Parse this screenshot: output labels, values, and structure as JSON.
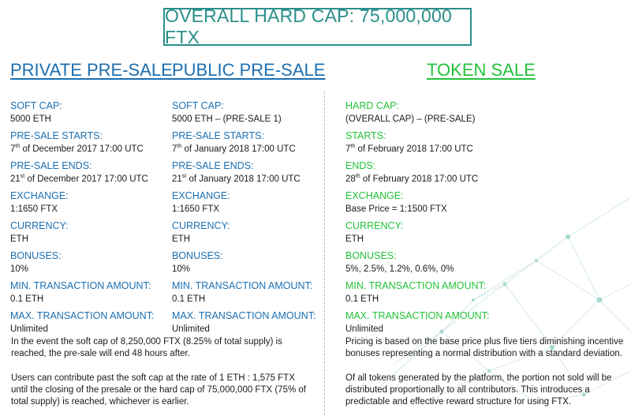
{
  "header": {
    "hard_cap": "OVERALL HARD CAP: 75,000,000 FTX"
  },
  "private_presale": {
    "title": "PRIVATE PRE-SALE",
    "soft_cap_label": "SOFT CAP:",
    "soft_cap_value": "5000 ETH",
    "starts_label": "PRE-SALE STARTS:",
    "starts_day": "7",
    "starts_suffix": "th",
    "starts_rest": " of December 2017 17:00 UTC",
    "ends_label": "PRE-SALE ENDS:",
    "ends_day": "21",
    "ends_suffix": "st",
    "ends_rest": " of December 2017 17:00 UTC",
    "exchange_label": "EXCHANGE:",
    "exchange_value": "1:1650 FTX",
    "currency_label": "CURRENCY:",
    "currency_value": "ETH",
    "bonuses_label": "BONUSES:",
    "bonuses_value": "10%",
    "min_label": "MIN. TRANSACTION AMOUNT:",
    "min_value": "0.1 ETH",
    "max_label": "MAX. TRANSACTION AMOUNT:",
    "max_value": "Unlimited"
  },
  "public_presale": {
    "title": "PUBLIC PRE-SALE",
    "soft_cap_label": "SOFT CAP:",
    "soft_cap_value": "5000 ETH – (PRE-SALE 1)",
    "starts_label": "PRE-SALE STARTS:",
    "starts_day": "7",
    "starts_suffix": "th",
    "starts_rest": " of January 2018 17:00 UTC",
    "ends_label": "PRE-SALE ENDS:",
    "ends_day": "21",
    "ends_suffix": "st",
    "ends_rest": " of January 2018 17:00 UTC",
    "exchange_label": "EXCHANGE:",
    "exchange_value": "1:1650 FTX",
    "currency_label": "CURRENCY:",
    "currency_value": "ETH",
    "bonuses_label": "BONUSES:",
    "bonuses_value": "10%",
    "min_label": "MIN. TRANSACTION AMOUNT:",
    "min_value": "0.1 ETH",
    "max_label": "MAX. TRANSACTION AMOUNT:",
    "max_value": "Unlimited"
  },
  "token_sale": {
    "title": "TOKEN SALE",
    "hard_cap_label": "HARD CAP:",
    "hard_cap_value": "(OVERALL CAP) – (PRE-SALE)",
    "starts_label": "STARTS:",
    "starts_day": "7",
    "starts_suffix": "th",
    "starts_rest": " of February 2018 17:00 UTC",
    "ends_label": "ENDS:",
    "ends_day": "28",
    "ends_suffix": "th",
    "ends_rest": " of February 2018 17:00 UTC",
    "exchange_label": "EXCHANGE:",
    "exchange_value": "Base Price = 1:1500 FTX",
    "currency_label": "CURRENCY:",
    "currency_value": "ETH",
    "bonuses_label": "BONUSES:",
    "bonuses_value": "5%, 2.5%, 1.2%, 0.6%, 0%",
    "min_label": "MIN. TRANSACTION AMOUNT:",
    "min_value": "0.1 ETH",
    "max_label": "MAX. TRANSACTION AMOUNT:",
    "max_value": "Unlimited"
  },
  "notes": {
    "soft_cap_note": "In the event the soft cap of 8,250,000 FTX (8.25% of total supply) is reached, the pre-sale will end 48 hours after.",
    "contribution_note": "Users can contribute past the soft cap at the rate of 1 ETH : 1,575 FTX until the closing of the presale or the hard cap of 75,000,000 FTX (75% of total supply) is reached, whichever is earlier.",
    "pricing_note": "Pricing is based on the base price plus five tiers diminishing incentive bonuses representing a normal distribution with a standard deviation.",
    "distribution_note": "Of all tokens generated by the platform, the portion not sold will be distributed proportionally to all contributors. This introduces a predictable and effective reward structure for using FTX."
  },
  "colors": {
    "teal": "#2a8f8a",
    "blue": "#1d6fb0",
    "green": "#24c23a"
  }
}
